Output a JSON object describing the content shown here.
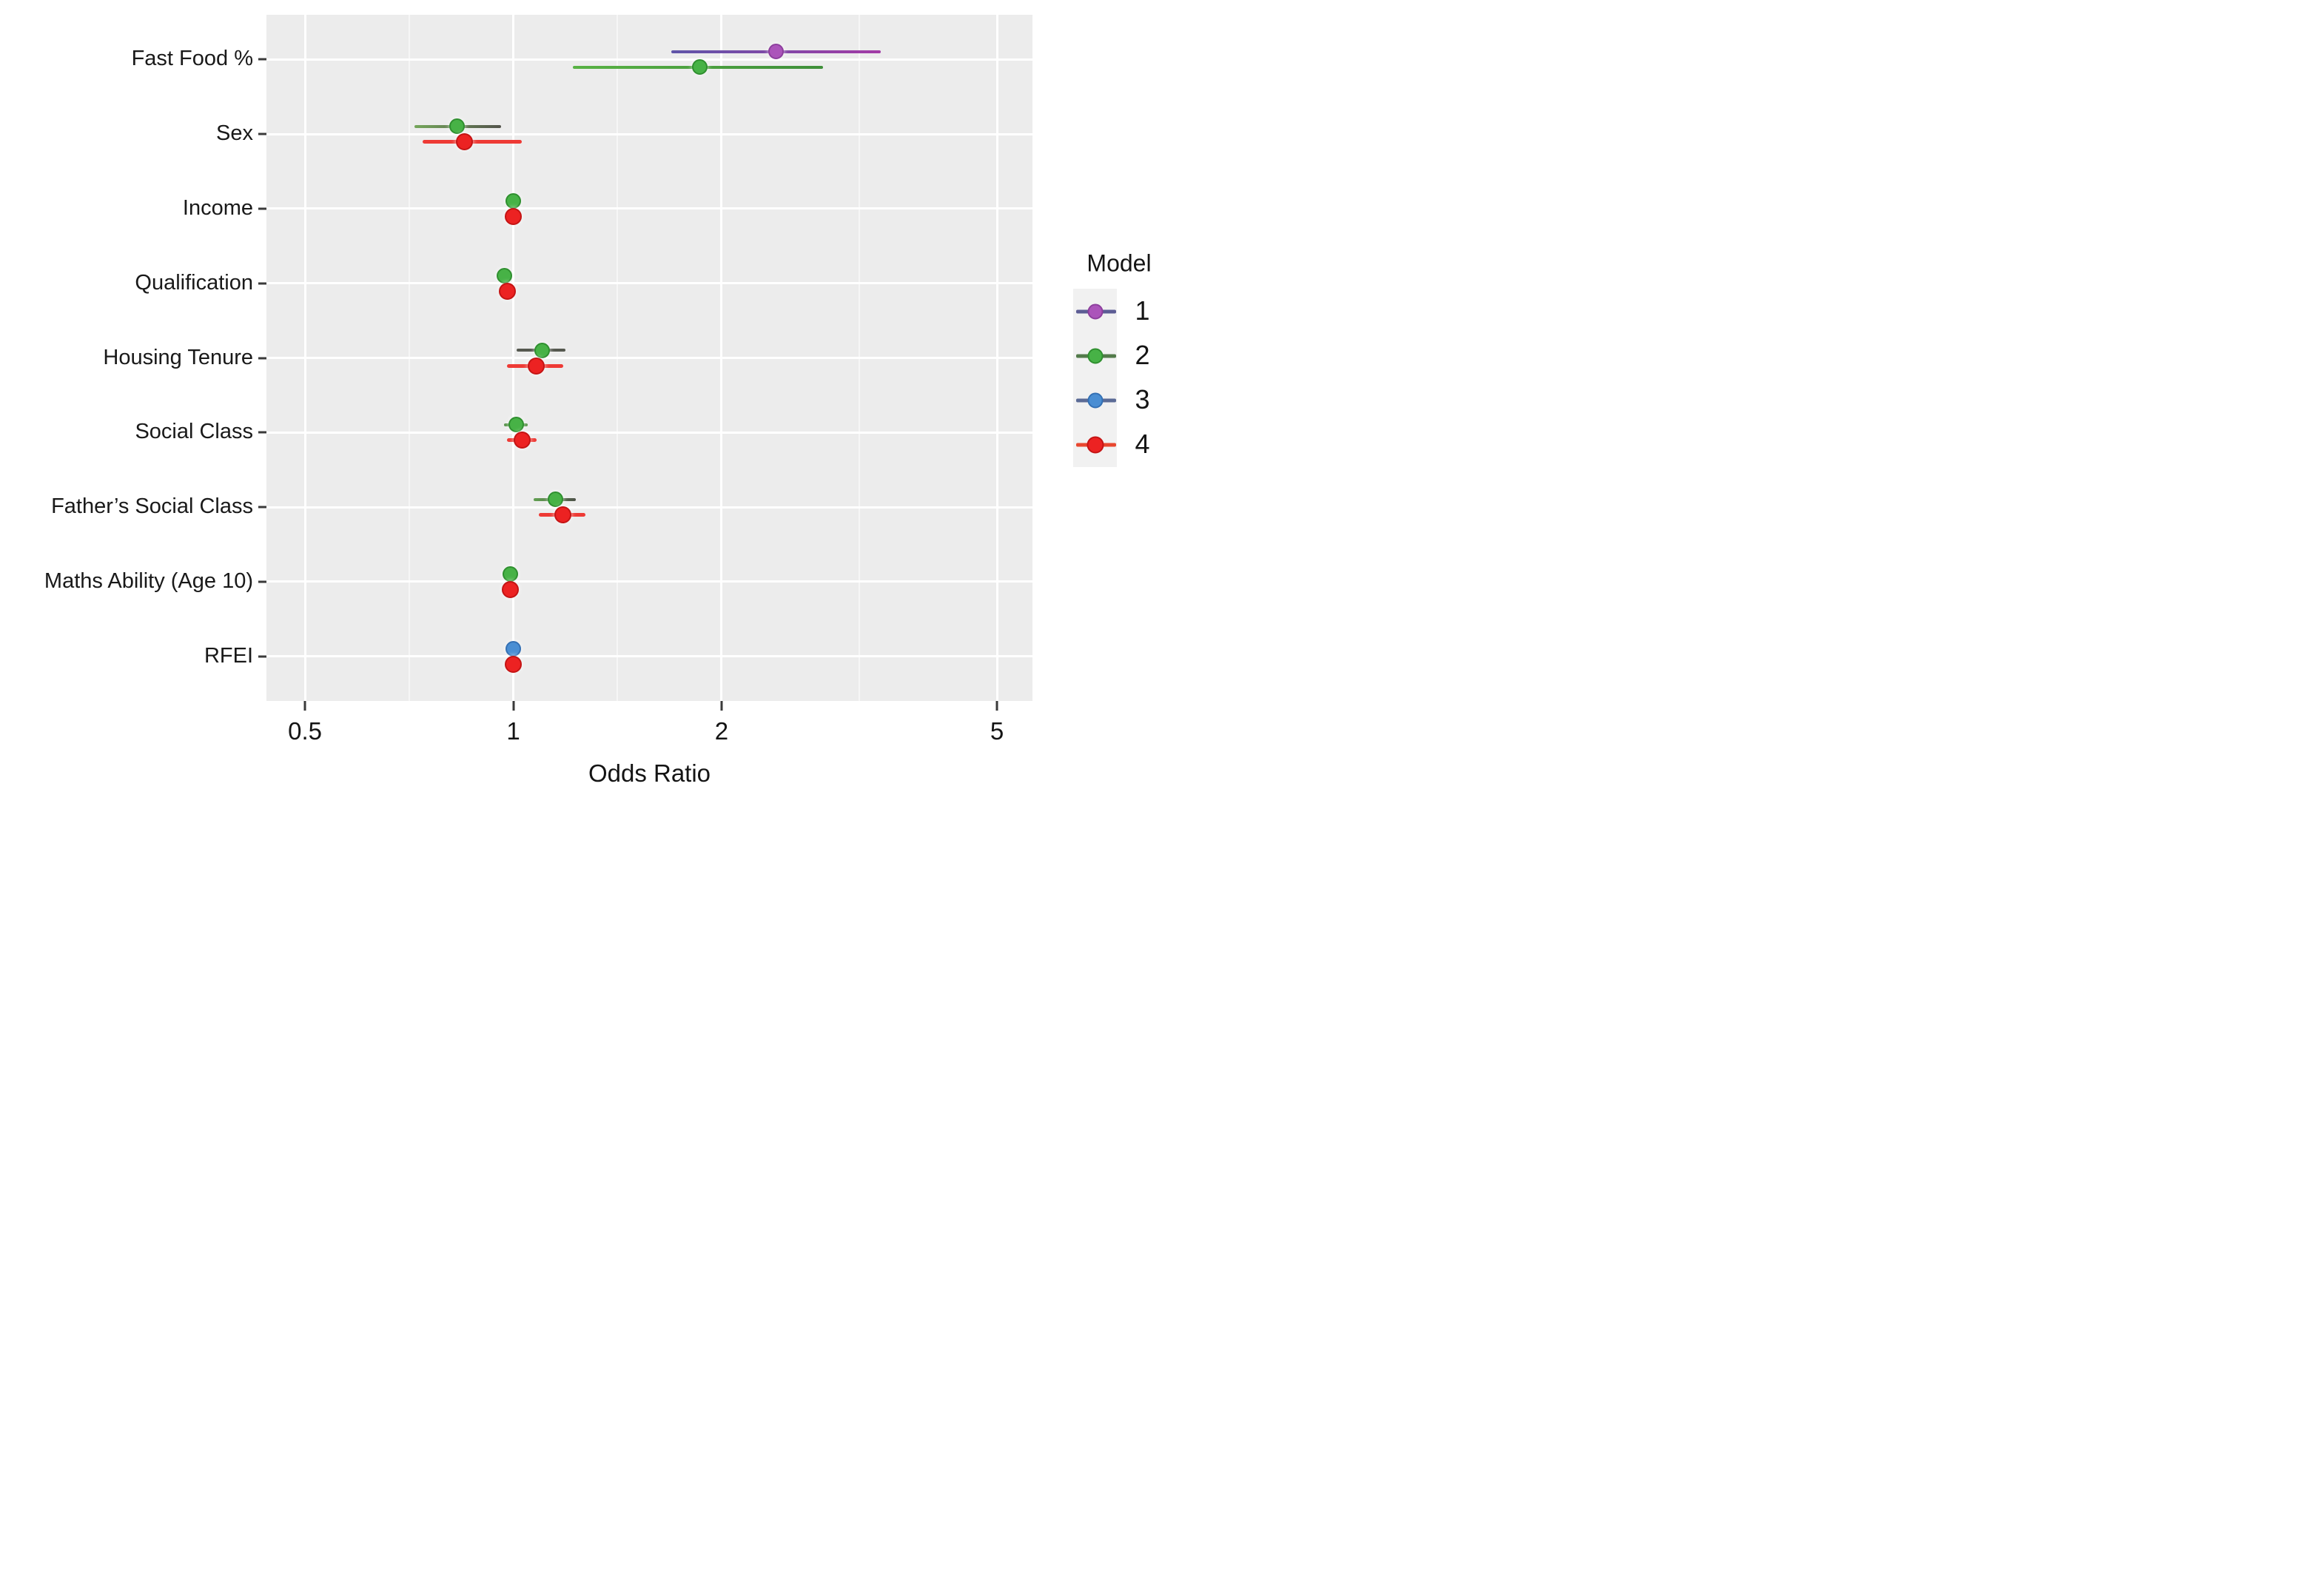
{
  "chart_data": {
    "type": "forest-dot-ci",
    "x_axis": {
      "title": "Odds Ratio",
      "scale": "log",
      "tick_labels": [
        "0.5",
        "1",
        "2",
        "5"
      ],
      "tick_values": [
        0.5,
        1,
        2,
        5
      ],
      "minor_gridlines": [
        0.707,
        1.414,
        3.162
      ],
      "range": [
        0.44,
        5.6
      ],
      "grid": true
    },
    "y_axis": {
      "categories": [
        "Fast Food %",
        "Sex",
        "Income",
        "Qualification",
        "Housing Tenure",
        "Social Class",
        "Father’s Social Class",
        "Maths Ability (Age 10)",
        "RFEI"
      ]
    },
    "legend": {
      "title": "Model",
      "position": "right",
      "items": [
        {
          "label": "1",
          "color": "#ab54ba"
        },
        {
          "label": "2",
          "color": "#47b246"
        },
        {
          "label": "3",
          "color": "#4a8ed3"
        },
        {
          "label": "4",
          "color": "#ec2222"
        }
      ]
    },
    "models": {
      "1": {
        "fill": "#ab54ba",
        "border": "#8d3f9d",
        "ci": "#7a4aa5",
        "ci2": [
          "#5f55a8",
          "#a23ba6"
        ],
        "size": 21,
        "key_line": "#5d5d95"
      },
      "2": {
        "fill": "#47b246",
        "border": "#2f8f2f",
        "ci": "#4c9a3e",
        "size": 21,
        "key_line": "#527a4a"
      },
      "3": {
        "fill": "#4a8ed3",
        "border": "#3470b4",
        "ci": "#5b6b96",
        "size": 21,
        "key_line": "#5b6b96"
      },
      "4": {
        "fill": "#ec2222",
        "border": "#c41414",
        "ci": "#ee3a35",
        "size": 23,
        "key_line": "#e8472f"
      }
    },
    "rows": [
      {
        "category": "Fast Food %",
        "points": [
          {
            "model": "1",
            "or": 2.4,
            "ci": [
              1.69,
              3.4
            ],
            "ci_color2": [
              "#5f55a8",
              "#a23ba6"
            ]
          },
          {
            "model": "2",
            "or": 1.86,
            "ci": [
              1.22,
              2.8
            ],
            "ci_color2": [
              "#58b244",
              "#3f8f3a"
            ]
          }
        ]
      },
      {
        "category": "Sex",
        "points": [
          {
            "model": "2",
            "or": 0.83,
            "ci": [
              0.72,
              0.96
            ],
            "ci_color2": [
              "#74a65a",
              "#53544c"
            ]
          },
          {
            "model": "4",
            "or": 0.85,
            "ci": [
              0.74,
              1.03
            ]
          }
        ]
      },
      {
        "category": "Income",
        "points": [
          {
            "model": "2",
            "or": 1.0,
            "ci": [
              0.98,
              1.02
            ]
          },
          {
            "model": "4",
            "or": 1.0,
            "ci": [
              0.98,
              1.02
            ]
          }
        ]
      },
      {
        "category": "Qualification",
        "points": [
          {
            "model": "2",
            "or": 0.97,
            "ci": [
              0.95,
              0.99
            ]
          },
          {
            "model": "4",
            "or": 0.98,
            "ci": [
              0.96,
              1.0
            ]
          }
        ]
      },
      {
        "category": "Housing Tenure",
        "points": [
          {
            "model": "2",
            "or": 1.1,
            "ci": [
              1.01,
              1.19
            ],
            "ci_color": "#55584f"
          },
          {
            "model": "4",
            "or": 1.08,
            "ci": [
              0.98,
              1.18
            ]
          }
        ]
      },
      {
        "category": "Social Class",
        "points": [
          {
            "model": "2",
            "or": 1.01,
            "ci": [
              0.97,
              1.05
            ],
            "ci_color": "#549247"
          },
          {
            "model": "4",
            "or": 1.03,
            "ci": [
              0.98,
              1.08
            ]
          }
        ]
      },
      {
        "category": "Father’s Social Class",
        "points": [
          {
            "model": "2",
            "or": 1.15,
            "ci": [
              1.07,
              1.23
            ],
            "ci_color2": [
              "#61a050",
              "#4e5249"
            ]
          },
          {
            "model": "4",
            "or": 1.18,
            "ci": [
              1.09,
              1.27
            ]
          }
        ]
      },
      {
        "category": "Maths Ability (Age 10)",
        "points": [
          {
            "model": "2",
            "or": 0.99,
            "ci": [
              0.97,
              1.01
            ]
          },
          {
            "model": "4",
            "or": 0.99,
            "ci": [
              0.97,
              1.01
            ]
          }
        ]
      },
      {
        "category": "RFEI",
        "points": [
          {
            "model": "3",
            "or": 1.0,
            "ci": [
              0.98,
              1.02
            ]
          },
          {
            "model": "4",
            "or": 1.0,
            "ci": [
              0.98,
              1.02
            ]
          }
        ]
      }
    ],
    "panel_background": "#ececec",
    "gridline_color": "#ffffff"
  }
}
